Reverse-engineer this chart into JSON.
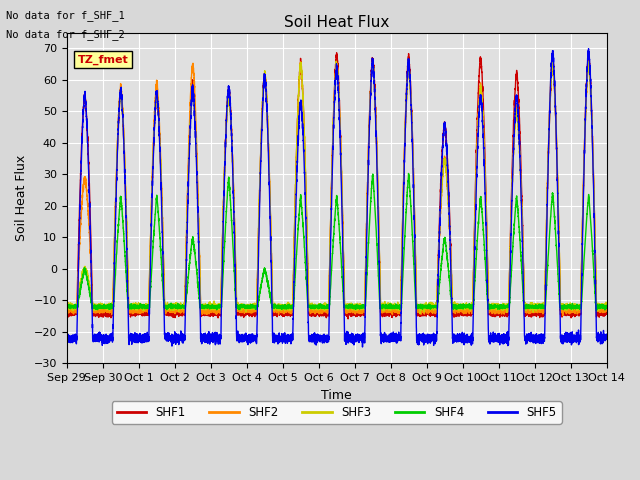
{
  "title": "Soil Heat Flux",
  "xlabel": "Time",
  "ylabel": "Soil Heat Flux",
  "ylim": [
    -30,
    75
  ],
  "yticks": [
    -30,
    -20,
    -10,
    0,
    10,
    20,
    30,
    40,
    50,
    60,
    70
  ],
  "num_days": 15,
  "xtick_labels": [
    "Sep 29",
    "Sep 30",
    "Oct 1",
    "Oct 2",
    "Oct 3",
    "Oct 4",
    "Oct 5",
    "Oct 6",
    "Oct 7",
    "Oct 8",
    "Oct 9",
    "Oct 10",
    "Oct 11",
    "Oct 12",
    "Oct 13",
    "Oct 14"
  ],
  "annotation_text": "TZ_fmet",
  "annotation_color": "#cc0000",
  "annotation_bg": "#ffff99",
  "note1": "No data for f_SHF_1",
  "note2": "No data for f_SHF_2",
  "colors": {
    "SHF1": "#cc0000",
    "SHF2": "#ff8800",
    "SHF3": "#cccc00",
    "SHF4": "#00cc00",
    "SHF5": "#0000ee"
  },
  "background_color": "#e0e0e0",
  "grid_color": "#ffffff"
}
